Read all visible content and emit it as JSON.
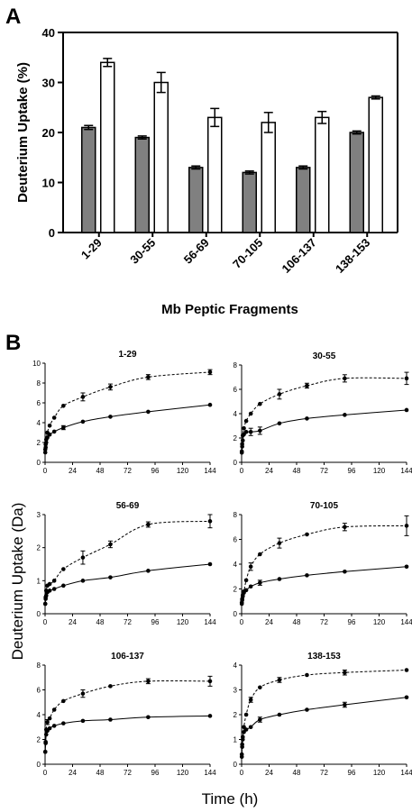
{
  "chart_data": [
    {
      "type": "bar",
      "panel_label": "A",
      "categories": [
        "1-29",
        "30-55",
        "56-69",
        "70-105",
        "106-137",
        "138-153"
      ],
      "series": [
        {
          "color": "#808080",
          "values": [
            21,
            19,
            13,
            12,
            13,
            20
          ],
          "errors": [
            0.4,
            0.3,
            0.3,
            0.3,
            0.3,
            0.3
          ]
        },
        {
          "color": "#ffffff",
          "values": [
            34,
            30,
            23,
            22,
            23,
            27
          ],
          "errors": [
            0.8,
            2.0,
            1.8,
            2.0,
            1.2,
            0.3
          ]
        }
      ],
      "ylabel": "Deuterium Uptake (%)",
      "xlabel": "Mb Peptic Fragments",
      "ylim": [
        0,
        40
      ],
      "yticks": [
        "0",
        "10",
        "20",
        "30",
        "40"
      ]
    },
    {
      "type": "line",
      "panel_label": "B",
      "ylabel": "Deuterium Uptake (Da)",
      "xlabel": "Time (h)",
      "subplots": [
        {
          "title": "1-29",
          "xlim": [
            0,
            144
          ],
          "ylim": [
            0,
            10
          ],
          "xticks": [
            "0",
            "24",
            "48",
            "72",
            "96",
            "120",
            "144"
          ],
          "yticks": [
            "0",
            "2",
            "4",
            "6",
            "8",
            "10"
          ],
          "series": [
            {
              "style": "dashed",
              "x": [
                0.17,
                0.5,
                1,
                2,
                4,
                8,
                16,
                33,
                57,
                90,
                144
              ],
              "y": [
                1.3,
                1.8,
                2.3,
                3.0,
                3.7,
                4.5,
                5.7,
                6.6,
                7.6,
                8.6,
                9.1
              ],
              "errors": [
                0,
                0,
                0,
                0,
                0,
                0,
                0,
                0.4,
                0.3,
                0.25,
                0.25
              ]
            },
            {
              "style": "solid",
              "x": [
                0.17,
                0.5,
                1,
                2,
                4,
                8,
                16,
                33,
                57,
                90,
                144
              ],
              "y": [
                1.0,
                1.5,
                2.0,
                2.5,
                2.8,
                3.1,
                3.5,
                4.1,
                4.6,
                5.1,
                5.8
              ],
              "errors": [
                0,
                0,
                0,
                0,
                0,
                0,
                0.2,
                0,
                0,
                0,
                0
              ]
            }
          ]
        },
        {
          "title": "30-55",
          "xlim": [
            0,
            144
          ],
          "ylim": [
            0,
            8
          ],
          "xticks": [
            "0",
            "24",
            "48",
            "72",
            "96",
            "120",
            "144"
          ],
          "yticks": [
            "0",
            "2",
            "4",
            "6",
            "8"
          ],
          "series": [
            {
              "style": "dashed",
              "x": [
                0.17,
                0.5,
                1,
                2,
                4,
                8,
                16,
                33,
                57,
                90,
                144
              ],
              "y": [
                0.9,
                1.5,
                2.2,
                2.8,
                3.4,
                4.0,
                4.8,
                5.6,
                6.3,
                6.9,
                6.9
              ],
              "errors": [
                0,
                0,
                0,
                0,
                0,
                0,
                0,
                0.4,
                0.2,
                0.3,
                0.5
              ]
            },
            {
              "style": "solid",
              "x": [
                0.17,
                0.5,
                1,
                2,
                4,
                8,
                16,
                33,
                57,
                90,
                144
              ],
              "y": [
                0.8,
                1.3,
                1.8,
                2.3,
                2.5,
                2.5,
                2.6,
                3.2,
                3.6,
                3.9,
                4.3
              ],
              "errors": [
                0,
                0,
                0,
                0,
                0,
                0.3,
                0.3,
                0,
                0,
                0,
                0
              ]
            }
          ]
        },
        {
          "title": "56-69",
          "xlim": [
            0,
            144
          ],
          "ylim": [
            0,
            3
          ],
          "xticks": [
            "0",
            "24",
            "48",
            "72",
            "96",
            "120",
            "144"
          ],
          "yticks": [
            "0",
            "1",
            "2",
            "3"
          ],
          "series": [
            {
              "style": "dashed",
              "x": [
                0.17,
                0.5,
                1,
                2,
                4,
                8,
                16,
                33,
                57,
                90,
                144
              ],
              "y": [
                0.3,
                0.5,
                0.7,
                0.85,
                0.9,
                1.0,
                1.35,
                1.7,
                2.1,
                2.7,
                2.8
              ],
              "errors": [
                0,
                0,
                0,
                0,
                0,
                0,
                0,
                0.2,
                0.1,
                0.08,
                0.2
              ]
            },
            {
              "style": "solid",
              "x": [
                0.17,
                0.5,
                1,
                2,
                4,
                8,
                16,
                33,
                57,
                90,
                144
              ],
              "y": [
                0.3,
                0.45,
                0.55,
                0.65,
                0.7,
                0.75,
                0.85,
                1.0,
                1.1,
                1.3,
                1.5
              ],
              "errors": [
                0,
                0,
                0,
                0,
                0,
                0,
                0,
                0,
                0,
                0,
                0
              ]
            }
          ]
        },
        {
          "title": "70-105",
          "xlim": [
            0,
            144
          ],
          "ylim": [
            0,
            8
          ],
          "xticks": [
            "0",
            "24",
            "48",
            "72",
            "96",
            "120",
            "144"
          ],
          "yticks": [
            "0",
            "2",
            "4",
            "6",
            "8"
          ],
          "series": [
            {
              "style": "dashed",
              "x": [
                0.17,
                0.5,
                1,
                2,
                4,
                8,
                16,
                33,
                57,
                90,
                144
              ],
              "y": [
                0.9,
                1.2,
                1.5,
                1.8,
                2.7,
                3.8,
                4.8,
                5.7,
                6.4,
                7.0,
                7.1
              ],
              "errors": [
                0,
                0,
                0,
                0,
                0,
                0.3,
                0,
                0.4,
                0,
                0.3,
                0.8
              ]
            },
            {
              "style": "solid",
              "x": [
                0.17,
                0.5,
                1,
                2,
                4,
                8,
                16,
                33,
                57,
                90,
                144
              ],
              "y": [
                0.8,
                1.1,
                1.4,
                1.7,
                1.9,
                2.2,
                2.5,
                2.8,
                3.1,
                3.4,
                3.8
              ],
              "errors": [
                0,
                0,
                0,
                0,
                0,
                0,
                0.2,
                0,
                0,
                0,
                0
              ]
            }
          ]
        },
        {
          "title": "106-137",
          "xlim": [
            0,
            144
          ],
          "ylim": [
            0,
            8
          ],
          "xticks": [
            "0",
            "24",
            "48",
            "72",
            "96",
            "120",
            "144"
          ],
          "yticks": [
            "0",
            "2",
            "4",
            "6",
            "8"
          ],
          "series": [
            {
              "style": "dashed",
              "x": [
                0.17,
                0.5,
                1,
                2,
                4,
                8,
                16,
                33,
                57,
                90,
                144
              ],
              "y": [
                1.0,
                1.8,
                2.8,
                3.4,
                3.7,
                4.4,
                5.1,
                5.7,
                6.3,
                6.7,
                6.7
              ],
              "errors": [
                0,
                0,
                0,
                0.2,
                0,
                0,
                0,
                0.3,
                0,
                0.2,
                0.4
              ]
            },
            {
              "style": "solid",
              "x": [
                0.17,
                0.5,
                1,
                2,
                4,
                8,
                16,
                33,
                57,
                90,
                144
              ],
              "y": [
                1.0,
                1.7,
                2.4,
                2.7,
                2.9,
                3.1,
                3.3,
                3.5,
                3.6,
                3.8,
                3.9
              ],
              "errors": [
                0,
                0,
                0,
                0,
                0,
                0,
                0,
                0,
                0,
                0,
                0
              ]
            }
          ]
        },
        {
          "title": "138-153",
          "xlim": [
            0,
            144
          ],
          "ylim": [
            0,
            4
          ],
          "xticks": [
            "0",
            "24",
            "48",
            "72",
            "96",
            "120",
            "144"
          ],
          "yticks": [
            "0",
            "1",
            "2",
            "3",
            "4"
          ],
          "series": [
            {
              "style": "dashed",
              "x": [
                0.17,
                0.5,
                1,
                2,
                4,
                8,
                16,
                33,
                57,
                90,
                144
              ],
              "y": [
                0.3,
                0.7,
                1.0,
                1.5,
                2.0,
                2.6,
                3.1,
                3.4,
                3.6,
                3.7,
                3.8
              ],
              "errors": [
                0,
                0,
                0,
                0,
                0,
                0.1,
                0,
                0.1,
                0,
                0.1,
                0
              ]
            },
            {
              "style": "solid",
              "x": [
                0.17,
                0.5,
                1,
                2,
                4,
                8,
                16,
                33,
                57,
                90,
                144
              ],
              "y": [
                0.4,
                0.8,
                1.1,
                1.3,
                1.4,
                1.5,
                1.8,
                2.0,
                2.2,
                2.4,
                2.7
              ],
              "errors": [
                0,
                0,
                0,
                0,
                0,
                0,
                0.1,
                0,
                0,
                0.1,
                0
              ]
            }
          ]
        }
      ]
    }
  ]
}
